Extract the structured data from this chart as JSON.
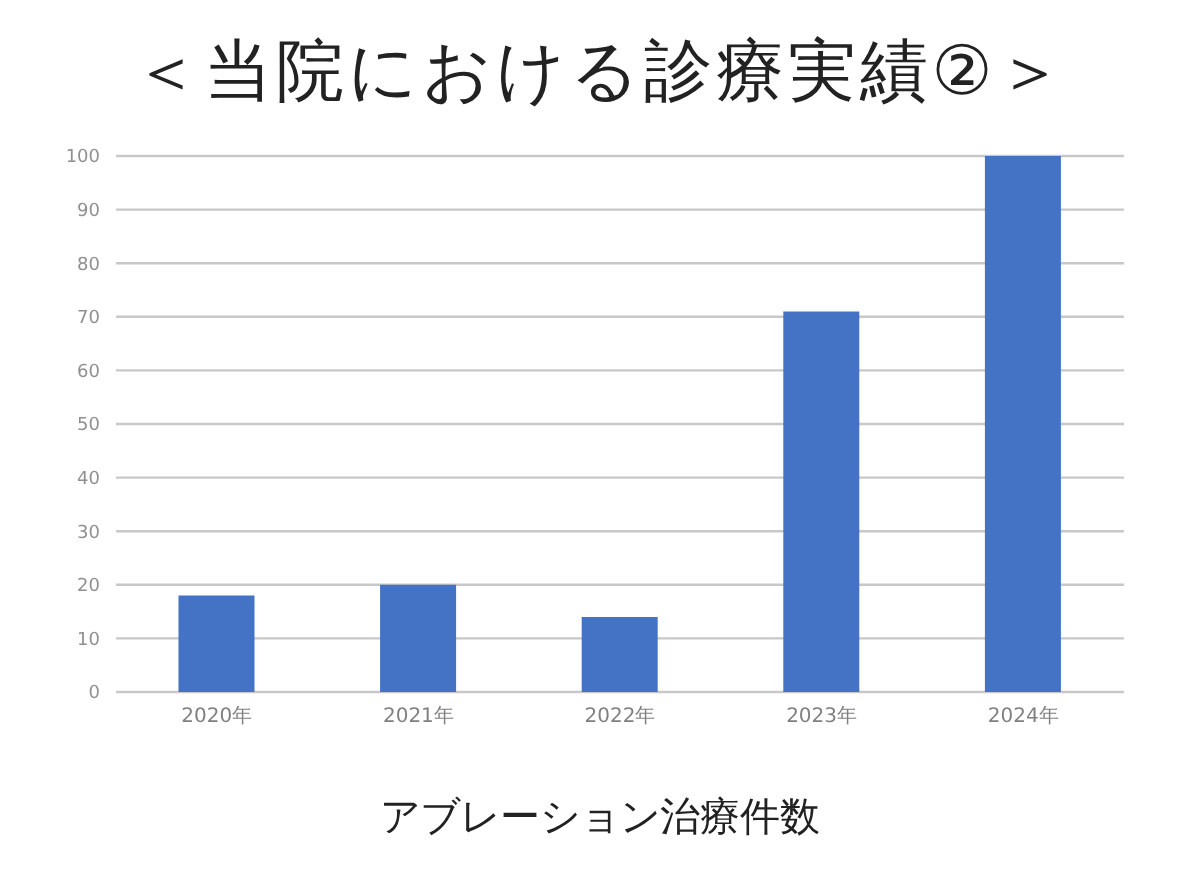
{
  "chart_data": {
    "type": "bar",
    "title": "＜当院における診療実績②＞",
    "xlabel": "アブレーション治療件数",
    "categories": [
      "2020年",
      "2021年",
      "2022年",
      "2023年",
      "2024年"
    ],
    "values": [
      18,
      20,
      14,
      71,
      100
    ],
    "color": "#4472c4",
    "ylim": [
      0,
      100
    ],
    "yticks": [
      0,
      10,
      20,
      30,
      40,
      50,
      60,
      70,
      80,
      90,
      100
    ],
    "grid": "y"
  }
}
